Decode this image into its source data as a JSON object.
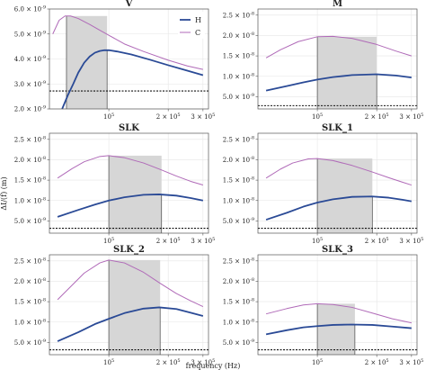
{
  "figure": {
    "xlabel": "frequency (Hz)",
    "ylabel": "ΔI/(f) (m)"
  },
  "colors": {
    "H": "#2a4a96",
    "C": "#b06ab8",
    "band": "#d6d6d6",
    "grid": "#e6e6e6"
  },
  "chart_data": [
    {
      "type": "line",
      "title": "V",
      "xscale": "log",
      "xlim": [
        50000,
        320000
      ],
      "ylim": [
        2e-09,
        6e-09
      ],
      "xticks": [
        {
          "v": 100000,
          "label": "10^5"
        },
        {
          "v": 200000,
          "label": "2 × 10^5"
        },
        {
          "v": 300000,
          "label": "3 × 10^5"
        }
      ],
      "yticks": [
        {
          "v": 2e-09,
          "label": "2.0 × 10^-9"
        },
        {
          "v": 3e-09,
          "label": "3.0 × 10^-9"
        },
        {
          "v": 4e-09,
          "label": "4.0 × 10^-9"
        },
        {
          "v": 5e-09,
          "label": "5.0 × 10^-9"
        },
        {
          "v": 6e-09,
          "label": "6.0 × 10^-9"
        }
      ],
      "band": [
        61000,
        98000
      ],
      "baseline": 2.72e-09,
      "series": [
        {
          "name": "H",
          "x": [
            58000,
            62000,
            66000,
            70000,
            75000,
            80000,
            85000,
            90000,
            95000,
            100000,
            110000,
            130000,
            160000,
            200000,
            250000,
            300000
          ],
          "values": [
            2e-09,
            2.55e-09,
            3e-09,
            3.45e-09,
            3.85e-09,
            4.1e-09,
            4.25e-09,
            4.32e-09,
            4.35e-09,
            4.35e-09,
            4.3e-09,
            4.18e-09,
            3.98e-09,
            3.75e-09,
            3.53e-09,
            3.35e-09
          ]
        },
        {
          "name": "C",
          "x": [
            52000,
            56000,
            60000,
            64000,
            70000,
            80000,
            90000,
            100000,
            120000,
            150000,
            200000,
            250000,
            300000
          ],
          "values": [
            5e-09,
            5.55e-09,
            5.72e-09,
            5.72e-09,
            5.62e-09,
            5.38e-09,
            5.15e-09,
            4.95e-09,
            4.6e-09,
            4.3e-09,
            3.95e-09,
            3.72e-09,
            3.58e-09
          ]
        }
      ]
    },
    {
      "type": "line",
      "title": "M",
      "xscale": "log",
      "xlim": [
        50000,
        320000
      ],
      "ylim": [
        2e-09,
        2.65e-08
      ],
      "xticks": [
        {
          "v": 100000,
          "label": "10^5"
        },
        {
          "v": 200000,
          "label": "2 × 10^5"
        },
        {
          "v": 300000,
          "label": "3 × 10^5"
        }
      ],
      "yticks": [
        {
          "v": 5e-09,
          "label": "5.0 × 10^-9"
        },
        {
          "v": 1e-08,
          "label": "1.0 × 10^-8"
        },
        {
          "v": 1.5e-08,
          "label": "1.5 × 10^-8"
        },
        {
          "v": 2e-08,
          "label": "2.0 × 10^-8"
        },
        {
          "v": 2.5e-08,
          "label": "2.5 × 10^-8"
        }
      ],
      "band": [
        100000,
        200000
      ],
      "baseline": 2.8e-09,
      "series": [
        {
          "name": "H",
          "x": [
            55000,
            70000,
            85000,
            100000,
            120000,
            150000,
            200000,
            250000,
            300000
          ],
          "values": [
            6.5e-09,
            7.6e-09,
            8.5e-09,
            9.2e-09,
            9.8e-09,
            1.03e-08,
            1.05e-08,
            1.02e-08,
            9.7e-09
          ]
        },
        {
          "name": "C",
          "x": [
            55000,
            65000,
            80000,
            100000,
            120000,
            150000,
            200000,
            250000,
            300000
          ],
          "values": [
            1.45e-08,
            1.65e-08,
            1.85e-08,
            1.97e-08,
            1.98e-08,
            1.93e-08,
            1.78e-08,
            1.62e-08,
            1.5e-08
          ]
        }
      ]
    },
    {
      "type": "line",
      "title": "SLK",
      "xscale": "log",
      "xlim": [
        50000,
        320000
      ],
      "ylim": [
        2e-09,
        2.65e-08
      ],
      "xticks": [
        {
          "v": 100000,
          "label": "10^5"
        },
        {
          "v": 200000,
          "label": "2 × 10^5"
        },
        {
          "v": 300000,
          "label": "3 × 10^5"
        }
      ],
      "yticks": [
        {
          "v": 5e-09,
          "label": "5.0 × 10^-9"
        },
        {
          "v": 1e-08,
          "label": "1.0 × 10^-8"
        },
        {
          "v": 1.5e-08,
          "label": "1.5 × 10^-8"
        },
        {
          "v": 2e-08,
          "label": "2.0 × 10^-8"
        },
        {
          "v": 2.5e-08,
          "label": "2.5 × 10^-8"
        }
      ],
      "band": [
        100000,
        185000
      ],
      "baseline": 3.2e-09,
      "series": [
        {
          "name": "H",
          "x": [
            55000,
            70000,
            85000,
            100000,
            120000,
            150000,
            180000,
            220000,
            260000,
            300000
          ],
          "values": [
            6e-09,
            7.7e-09,
            9e-09,
            1e-08,
            1.08e-08,
            1.14e-08,
            1.15e-08,
            1.12e-08,
            1.06e-08,
            1e-08
          ]
        },
        {
          "name": "C",
          "x": [
            55000,
            65000,
            75000,
            90000,
            100000,
            120000,
            150000,
            185000,
            220000,
            260000,
            300000
          ],
          "values": [
            1.55e-08,
            1.78e-08,
            1.95e-08,
            2.08e-08,
            2.1e-08,
            2.05e-08,
            1.92e-08,
            1.75e-08,
            1.6e-08,
            1.47e-08,
            1.38e-08
          ]
        }
      ]
    },
    {
      "type": "line",
      "title": "SLK_1",
      "xscale": "log",
      "xlim": [
        50000,
        320000
      ],
      "ylim": [
        2e-09,
        2.65e-08
      ],
      "xticks": [
        {
          "v": 100000,
          "label": "10^5"
        },
        {
          "v": 200000,
          "label": "2 × 10^5"
        },
        {
          "v": 300000,
          "label": "3 × 10^5"
        }
      ],
      "yticks": [
        {
          "v": 5e-09,
          "label": "5.0 × 10^-9"
        },
        {
          "v": 1e-08,
          "label": "1.0 × 10^-8"
        },
        {
          "v": 1.5e-08,
          "label": "1.5 × 10^-8"
        },
        {
          "v": 2e-08,
          "label": "2.0 × 10^-8"
        },
        {
          "v": 2.5e-08,
          "label": "2.5 × 10^-8"
        }
      ],
      "band": [
        100000,
        190000
      ],
      "baseline": 3.2e-09,
      "series": [
        {
          "name": "H",
          "x": [
            55000,
            70000,
            85000,
            100000,
            120000,
            150000,
            190000,
            230000,
            270000,
            300000
          ],
          "values": [
            5.3e-09,
            7e-09,
            8.5e-09,
            9.5e-09,
            1.03e-08,
            1.09e-08,
            1.1e-08,
            1.07e-08,
            1.02e-08,
            9.8e-09
          ]
        },
        {
          "name": "C",
          "x": [
            55000,
            65000,
            75000,
            90000,
            100000,
            120000,
            150000,
            190000,
            230000,
            270000,
            300000
          ],
          "values": [
            1.55e-08,
            1.77e-08,
            1.92e-08,
            2.02e-08,
            2.03e-08,
            1.98e-08,
            1.86e-08,
            1.7e-08,
            1.56e-08,
            1.45e-08,
            1.38e-08
          ]
        }
      ]
    },
    {
      "type": "line",
      "title": "SLK_2",
      "xscale": "log",
      "xlim": [
        50000,
        320000
      ],
      "ylim": [
        2e-09,
        2.65e-08
      ],
      "xticks": [
        {
          "v": 100000,
          "label": "10^5"
        },
        {
          "v": 200000,
          "label": "2 × 10^5"
        },
        {
          "v": 300000,
          "label": "3 × 10^5"
        }
      ],
      "yticks": [
        {
          "v": 5e-09,
          "label": "5.0 × 10^-9"
        },
        {
          "v": 1e-08,
          "label": "1.0 × 10^-8"
        },
        {
          "v": 1.5e-08,
          "label": "1.5 × 10^-8"
        },
        {
          "v": 2e-08,
          "label": "2.0 × 10^-8"
        },
        {
          "v": 2.5e-08,
          "label": "2.5 × 10^-8"
        }
      ],
      "band": [
        100000,
        182000
      ],
      "baseline": 3.2e-09,
      "series": [
        {
          "name": "H",
          "x": [
            55000,
            70000,
            85000,
            100000,
            120000,
            150000,
            180000,
            220000,
            260000,
            300000
          ],
          "values": [
            5.3e-09,
            7.5e-09,
            9.5e-09,
            1.08e-08,
            1.22e-08,
            1.33e-08,
            1.36e-08,
            1.32e-08,
            1.23e-08,
            1.15e-08
          ]
        },
        {
          "name": "C",
          "x": [
            55000,
            65000,
            75000,
            90000,
            100000,
            120000,
            150000,
            182000,
            220000,
            260000,
            300000
          ],
          "values": [
            1.55e-08,
            1.9e-08,
            2.2e-08,
            2.45e-08,
            2.52e-08,
            2.45e-08,
            2.22e-08,
            1.95e-08,
            1.7e-08,
            1.52e-08,
            1.38e-08
          ]
        }
      ]
    },
    {
      "type": "line",
      "title": "SLK_3",
      "xscale": "log",
      "xlim": [
        50000,
        320000
      ],
      "ylim": [
        2e-09,
        2.65e-08
      ],
      "xticks": [
        {
          "v": 100000,
          "label": "10^5"
        },
        {
          "v": 200000,
          "label": "2 × 10^5"
        },
        {
          "v": 300000,
          "label": "3 × 10^5"
        }
      ],
      "yticks": [
        {
          "v": 5e-09,
          "label": "5.0 × 10^-9"
        },
        {
          "v": 1e-08,
          "label": "1.0 × 10^-8"
        },
        {
          "v": 1.5e-08,
          "label": "1.5 × 10^-8"
        },
        {
          "v": 2e-08,
          "label": "2.0 × 10^-8"
        },
        {
          "v": 2.5e-08,
          "label": "2.5 × 10^-8"
        }
      ],
      "band": [
        100000,
        155000
      ],
      "baseline": 3.2e-09,
      "series": [
        {
          "name": "H",
          "x": [
            55000,
            70000,
            85000,
            100000,
            120000,
            150000,
            190000,
            240000,
            300000
          ],
          "values": [
            7e-09,
            8e-09,
            8.7e-09,
            9e-09,
            9.3e-09,
            9.4e-09,
            9.3e-09,
            8.9e-09,
            8.5e-09
          ]
        },
        {
          "name": "C",
          "x": [
            55000,
            70000,
            85000,
            100000,
            120000,
            150000,
            190000,
            240000,
            300000
          ],
          "values": [
            1.2e-08,
            1.33e-08,
            1.42e-08,
            1.45e-08,
            1.43e-08,
            1.36e-08,
            1.22e-08,
            1.08e-08,
            9.8e-09
          ]
        }
      ]
    }
  ],
  "legend": {
    "items": [
      {
        "name": "H"
      },
      {
        "name": "C"
      }
    ]
  }
}
